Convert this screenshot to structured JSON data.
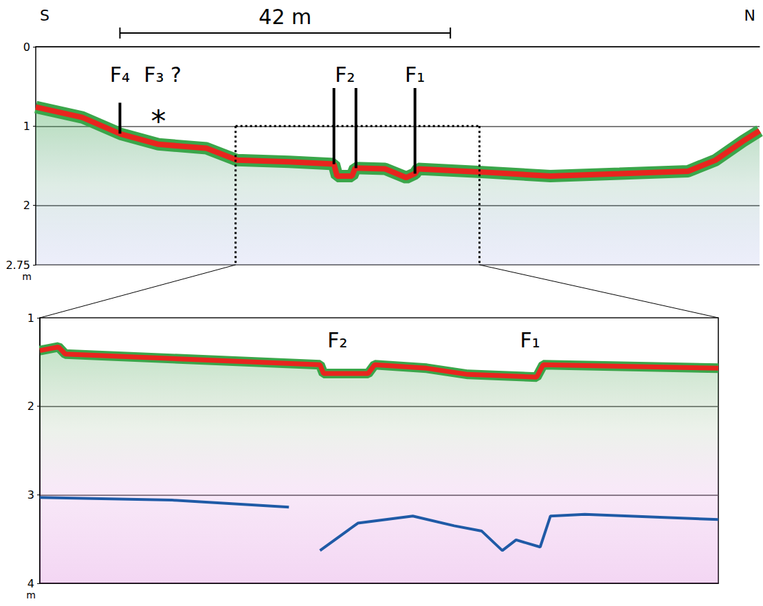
{
  "chart_data": [
    {
      "type": "line",
      "ylabel": "m",
      "direction_labels": [
        "S",
        "N"
      ],
      "scale_bar": {
        "label": "42 m",
        "start": 10.7,
        "length": 42
      },
      "xlim": [
        0,
        92
      ],
      "ylim": [
        0,
        2.75
      ],
      "yticks": [
        0,
        1,
        2
      ],
      "grid": true,
      "tick_labels": "y",
      "series": [
        {
          "color": "#e8251e",
          "x": [
            0,
            5.9,
            10.8,
            15.6,
            21.7,
            25.6,
            32.2,
            37.9,
            38.3,
            40.2,
            40.6,
            44.4,
            47.1,
            48.2,
            48.6,
            56.7,
            65.4,
            74.2,
            82.9,
            86.4,
            89.9,
            92
          ],
          "values": [
            0.76,
            0.89,
            1.1,
            1.23,
            1.28,
            1.43,
            1.45,
            1.48,
            1.63,
            1.63,
            1.53,
            1.54,
            1.65,
            1.6,
            1.54,
            1.58,
            1.63,
            1.6,
            1.57,
            1.43,
            1.19,
            1.06
          ]
        }
      ],
      "faults": [
        {
          "label": "F₄",
          "x": [
            10.7
          ]
        },
        {
          "label": "F₂",
          "x": [
            37.9,
            40.7
          ]
        },
        {
          "label": "F₁",
          "x": [
            48.2
          ]
        }
      ],
      "annotations": [
        {
          "text": "F₃ ?",
          "x": 15.6
        },
        {
          "text": "*",
          "x": 15.6
        }
      ]
    },
    {
      "type": "line",
      "ylabel": "m",
      "xlim": [
        25.4,
        56.4
      ],
      "ylim": [
        1,
        4
      ],
      "yticks": [
        1,
        2,
        3,
        4
      ],
      "grid": true,
      "tick_labels": "y",
      "series": [
        {
          "color": "#e8251e",
          "x": [
            25.4,
            26.25,
            26.56,
            38.2,
            38.36,
            40.4,
            40.7,
            43.07,
            44.96,
            48.1,
            48.4,
            56.4
          ],
          "values": [
            1.37,
            1.33,
            1.41,
            1.53,
            1.63,
            1.63,
            1.53,
            1.57,
            1.64,
            1.67,
            1.53,
            1.57
          ]
        },
        {
          "color": "#1f5aa6",
          "x": [
            25.4,
            31.44,
            36.78,
            37.5,
            38.2,
            39.93,
            42.44,
            44.33,
            45.59,
            46.53,
            47.16,
            48.26,
            48.73,
            50.3,
            56.4
          ],
          "values": [
            3.03,
            3.06,
            3.14,
            null,
            3.63,
            3.32,
            3.24,
            3.35,
            3.41,
            3.63,
            3.51,
            3.59,
            3.24,
            3.22,
            3.28
          ]
        }
      ],
      "annotations": [
        {
          "text": "F₂",
          "x": 39.0
        },
        {
          "text": "F₁",
          "x": 47.8
        }
      ]
    }
  ]
}
